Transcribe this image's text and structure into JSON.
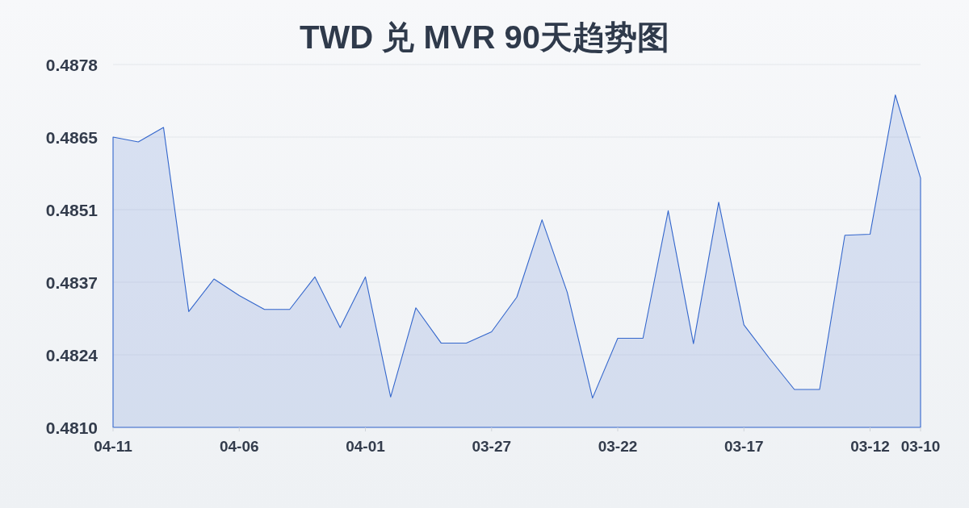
{
  "chart_data": {
    "type": "area",
    "title": "TWD 兑 MVR 90天趋势图",
    "x": [
      "--04-11",
      "--04-10",
      "--04-09",
      "--04-08",
      "--04-07",
      "--04-06",
      "--04-05",
      "--04-04",
      "--04-03",
      "--04-02",
      "--04-01",
      "--03-31",
      "--03-30",
      "--03-29",
      "--03-28",
      "--03-27",
      "--03-26",
      "--03-25",
      "--03-24",
      "--03-23",
      "--03-22",
      "--03-21",
      "--03-20",
      "--03-19",
      "--03-18",
      "--03-17",
      "--03-16",
      "--03-15",
      "--03-14",
      "--03-13",
      "--03-12",
      "--03-11",
      "--03-10"
    ],
    "series": [
      {
        "color": "#3366cc",
        "values": [
          0.48646,
          0.48637,
          0.48664,
          0.48319,
          0.4838,
          0.48349,
          0.48323,
          0.48323,
          0.48384,
          0.48289,
          0.48384,
          0.48159,
          0.48326,
          0.4826,
          0.4826,
          0.48281,
          0.48346,
          0.48491,
          0.48355,
          0.48157,
          0.48269,
          0.48269,
          0.48508,
          0.48259,
          0.48524,
          0.48294,
          0.48232,
          0.48173,
          0.48173,
          0.48462,
          0.48464,
          0.48725,
          0.48569
        ]
      }
    ],
    "xlim": [
      "--04-11",
      "--03-10"
    ],
    "xticks": [
      {
        "value": "--04-11",
        "label": "04-11"
      },
      {
        "value": "--04-06",
        "label": "04-06"
      },
      {
        "value": "--04-01",
        "label": "04-01"
      },
      {
        "value": "--03-27",
        "label": "03-27"
      },
      {
        "value": "--03-22",
        "label": "03-22"
      },
      {
        "value": "--03-17",
        "label": "03-17"
      },
      {
        "value": "--03-12",
        "label": "03-12"
      },
      {
        "value": "--03-10",
        "label": "03-10"
      }
    ],
    "ylim": [
      0.48102,
      0.48782
    ],
    "yticks": [
      {
        "value": 0.48102,
        "label": "0.4810"
      },
      {
        "value": 0.48238,
        "label": "0.4824"
      },
      {
        "value": 0.48374,
        "label": "0.4837"
      },
      0.4851,
      {
        "value": 0.48646,
        "label": "0.4865"
      },
      {
        "value": 0.48782,
        "label": "0.4878"
      }
    ],
    "grid": "y"
  }
}
